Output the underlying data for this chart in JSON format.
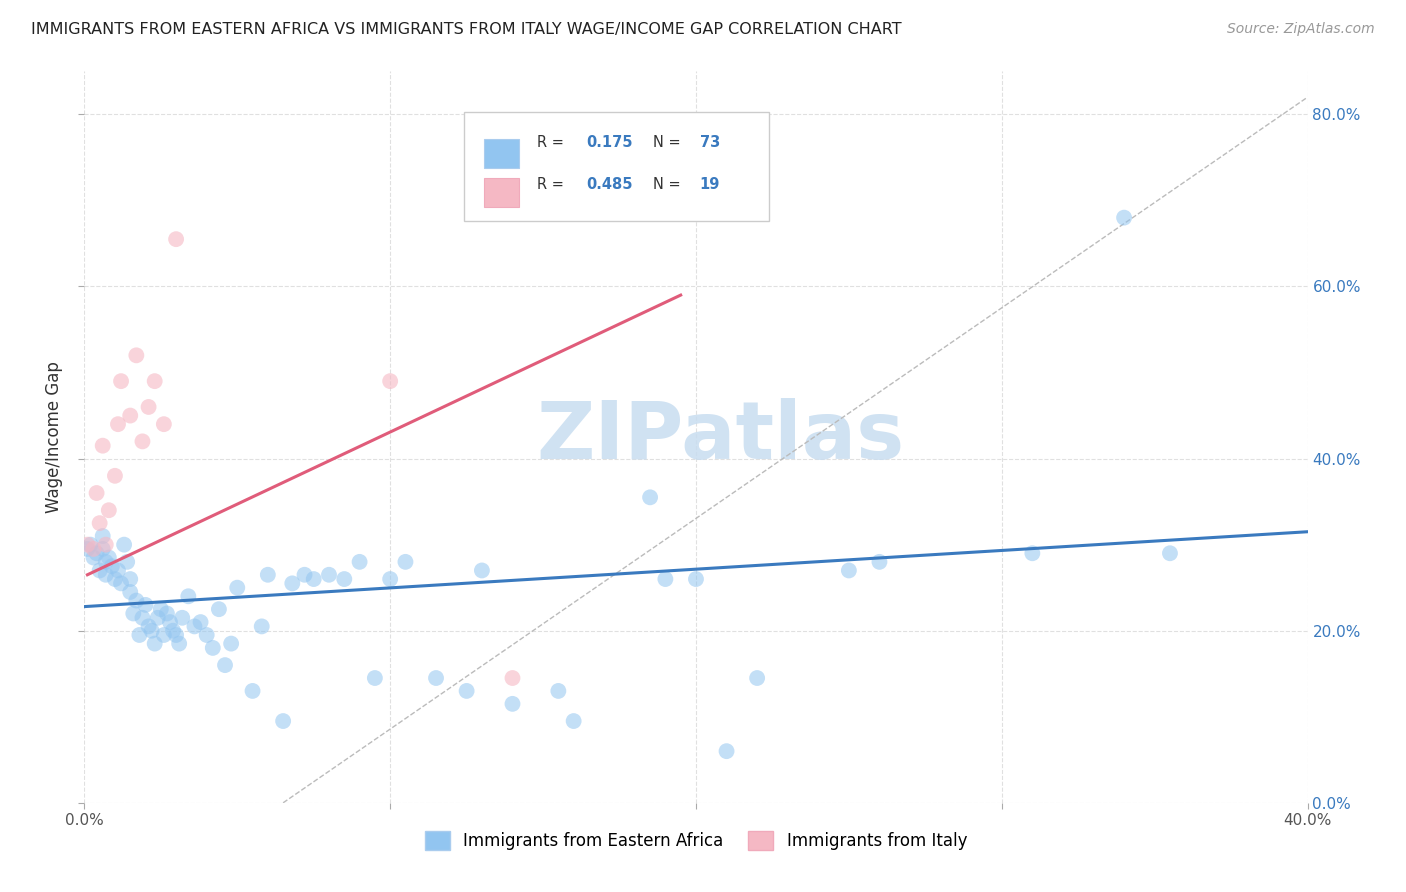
{
  "title": "IMMIGRANTS FROM EASTERN AFRICA VS IMMIGRANTS FROM ITALY WAGE/INCOME GAP CORRELATION CHART",
  "source": "Source: ZipAtlas.com",
  "ylabel": "Wage/Income Gap",
  "xlim": [
    0.0,
    0.4
  ],
  "ylim": [
    0.0,
    0.85
  ],
  "y_ticks": [
    0.0,
    0.2,
    0.4,
    0.6,
    0.8
  ],
  "legend_blue_label": "Immigrants from Eastern Africa",
  "legend_pink_label": "Immigrants from Italy",
  "R_blue": 0.175,
  "N_blue": 73,
  "R_pink": 0.485,
  "N_pink": 19,
  "blue_color": "#92c5f0",
  "pink_color": "#f5b8c4",
  "blue_line_color": "#3a7abf",
  "pink_line_color": "#e05c7a",
  "dot_size": 130,
  "blue_dot_alpha": 0.55,
  "pink_dot_alpha": 0.6,
  "blue_points_x": [
    0.001,
    0.002,
    0.003,
    0.004,
    0.005,
    0.006,
    0.006,
    0.007,
    0.007,
    0.008,
    0.009,
    0.01,
    0.011,
    0.012,
    0.013,
    0.014,
    0.015,
    0.015,
    0.016,
    0.017,
    0.018,
    0.019,
    0.02,
    0.021,
    0.022,
    0.023,
    0.024,
    0.025,
    0.026,
    0.027,
    0.028,
    0.029,
    0.03,
    0.031,
    0.032,
    0.034,
    0.036,
    0.038,
    0.04,
    0.042,
    0.044,
    0.046,
    0.048,
    0.05,
    0.055,
    0.058,
    0.06,
    0.065,
    0.068,
    0.072,
    0.075,
    0.08,
    0.085,
    0.09,
    0.095,
    0.1,
    0.105,
    0.115,
    0.125,
    0.13,
    0.14,
    0.155,
    0.16,
    0.185,
    0.19,
    0.2,
    0.21,
    0.22,
    0.25,
    0.26,
    0.31,
    0.34,
    0.355
  ],
  "blue_points_y": [
    0.295,
    0.3,
    0.285,
    0.29,
    0.27,
    0.31,
    0.295,
    0.28,
    0.265,
    0.285,
    0.275,
    0.26,
    0.27,
    0.255,
    0.3,
    0.28,
    0.26,
    0.245,
    0.22,
    0.235,
    0.195,
    0.215,
    0.23,
    0.205,
    0.2,
    0.185,
    0.215,
    0.225,
    0.195,
    0.22,
    0.21,
    0.2,
    0.195,
    0.185,
    0.215,
    0.24,
    0.205,
    0.21,
    0.195,
    0.18,
    0.225,
    0.16,
    0.185,
    0.25,
    0.13,
    0.205,
    0.265,
    0.095,
    0.255,
    0.265,
    0.26,
    0.265,
    0.26,
    0.28,
    0.145,
    0.26,
    0.28,
    0.145,
    0.13,
    0.27,
    0.115,
    0.13,
    0.095,
    0.355,
    0.26,
    0.26,
    0.06,
    0.145,
    0.27,
    0.28,
    0.29,
    0.68,
    0.29
  ],
  "pink_points_x": [
    0.001,
    0.003,
    0.004,
    0.005,
    0.006,
    0.007,
    0.008,
    0.01,
    0.011,
    0.012,
    0.015,
    0.017,
    0.019,
    0.021,
    0.023,
    0.026,
    0.03,
    0.1,
    0.14
  ],
  "pink_points_y": [
    0.3,
    0.295,
    0.36,
    0.325,
    0.415,
    0.3,
    0.34,
    0.38,
    0.44,
    0.49,
    0.45,
    0.52,
    0.42,
    0.46,
    0.49,
    0.44,
    0.655,
    0.49,
    0.145
  ],
  "blue_line_x": [
    0.0,
    0.4
  ],
  "blue_line_y": [
    0.228,
    0.315
  ],
  "pink_line_x": [
    0.001,
    0.195
  ],
  "pink_line_y": [
    0.265,
    0.59
  ],
  "diag_line_x": [
    0.065,
    0.4
  ],
  "diag_line_y": [
    0.0,
    0.82
  ],
  "watermark": "ZIPatlas",
  "watermark_color": "#c8ddf0",
  "background_color": "#ffffff",
  "grid_color": "#e0e0e0"
}
